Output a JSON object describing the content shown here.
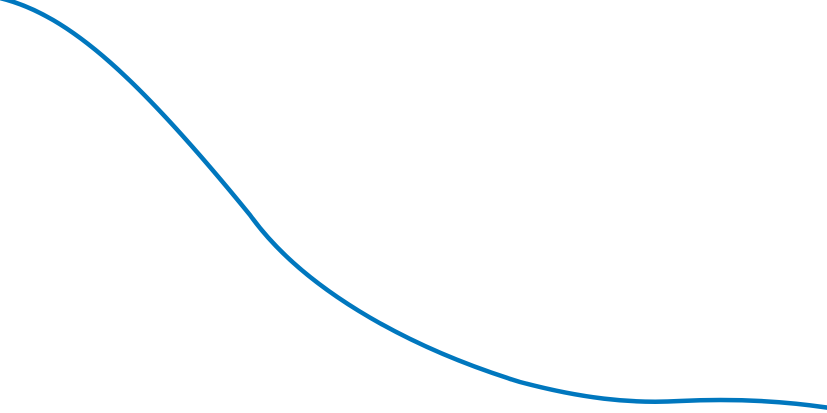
{
  "curve": {
    "stroke_color": "#0077be"
  }
}
